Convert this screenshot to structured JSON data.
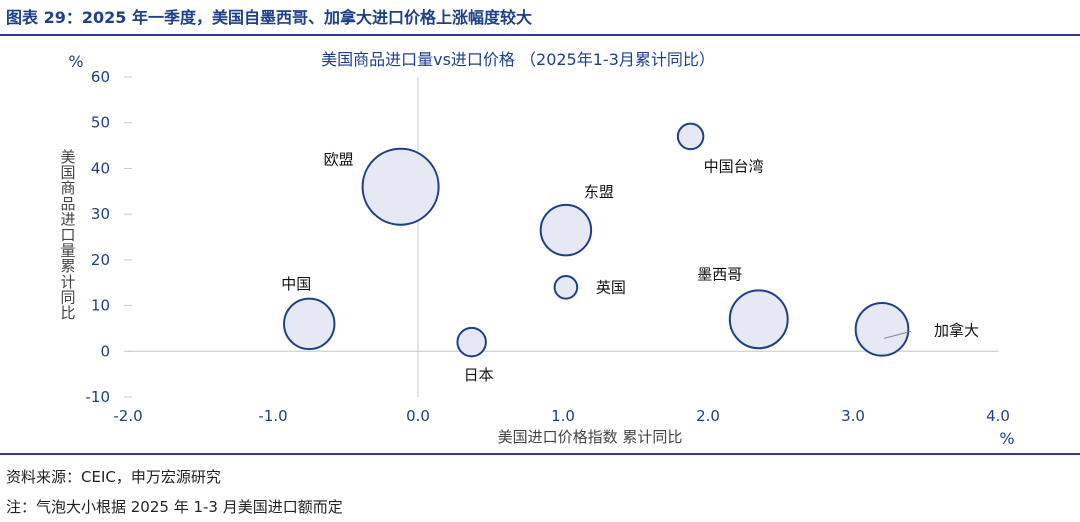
{
  "figure": {
    "title": "图表 29：2025 年一季度，美国自墨西哥、加拿大进口价格上涨幅度较大",
    "source": "资料来源：CEIC，申万宏源研究",
    "note": "注：气泡大小根据 2025 年 1-3 月美国进口额而定"
  },
  "chart_data": {
    "type": "scatter",
    "title": "美国商品进口量vs进口价格 （2025年1-3月累计同比）",
    "xlabel": "美国进口价格指数 累计同比",
    "ylabel": "美国商品进口量 累计同比",
    "x_unit": "%",
    "y_unit": "%",
    "xlim": [
      -2.0,
      4.0
    ],
    "ylim": [
      -10,
      60
    ],
    "x_ticks": [
      "-2.0",
      "-1.0",
      "0.0",
      "1.0",
      "2.0",
      "3.0",
      "4.0"
    ],
    "y_ticks": [
      "-10",
      "0",
      "10",
      "20",
      "30",
      "40",
      "50",
      "60"
    ],
    "bubble_fill": "#e6e9f4",
    "bubble_stroke": "#1f3e8c",
    "axis_color": "#1f3e8c",
    "points": [
      {
        "label": "欧盟",
        "x": -0.12,
        "y": 36,
        "size": 1.0
      },
      {
        "label": "中国台湾",
        "x": 1.88,
        "y": 47,
        "size": 0.08
      },
      {
        "label": "东盟",
        "x": 1.02,
        "y": 26.5,
        "size": 0.44
      },
      {
        "label": "墨西哥",
        "x": 2.35,
        "y": 7,
        "size": 0.58
      },
      {
        "label": "英国",
        "x": 1.02,
        "y": 14,
        "size": 0.06
      },
      {
        "label": "中国",
        "x": -0.75,
        "y": 6,
        "size": 0.44
      },
      {
        "label": "加拿大",
        "x": 3.2,
        "y": 4.8,
        "size": 0.48
      },
      {
        "label": "日本",
        "x": 0.37,
        "y": 2,
        "size": 0.14
      }
    ]
  }
}
